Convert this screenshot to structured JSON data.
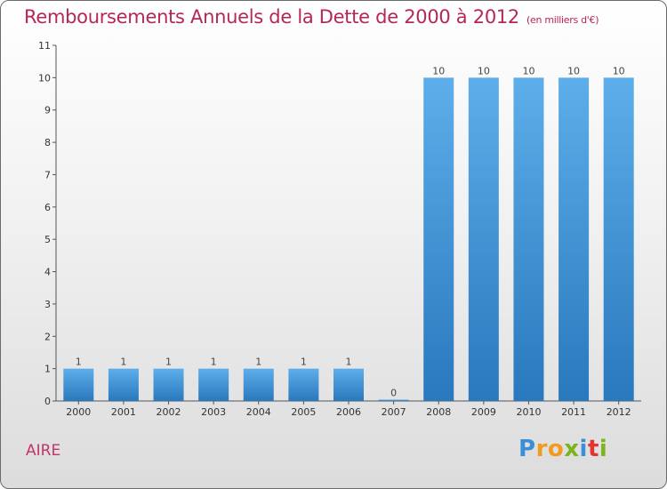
{
  "title": "Remboursements Annuels de la Dette de 2000 à 2012",
  "unit_note": "(en milliers d'€)",
  "city": "AIRE",
  "logo": {
    "letters": [
      "P",
      "r",
      "o",
      "x",
      "i",
      "t",
      "i"
    ],
    "colors": [
      "#3b8fd6",
      "#f29a1e",
      "#f29a1e",
      "#7ab51d",
      "#3b8fd6",
      "#e3342f",
      "#7ab51d"
    ]
  },
  "colors": {
    "bar_top": "#5daeea",
    "bar_bottom": "#2a78bd",
    "title": "#b5265a"
  },
  "chart_data": {
    "type": "bar",
    "categories": [
      "2000",
      "2001",
      "2002",
      "2003",
      "2004",
      "2005",
      "2006",
      "2007",
      "2008",
      "2009",
      "2010",
      "2011",
      "2012"
    ],
    "values": [
      1,
      1,
      1,
      1,
      1,
      1,
      1,
      0,
      10,
      10,
      10,
      10,
      10
    ],
    "data_labels": [
      "1",
      "1",
      "1",
      "1",
      "1",
      "1",
      "1",
      "0",
      "10",
      "10",
      "10",
      "10",
      "10"
    ],
    "y_ticks": [
      "0",
      "1",
      "2",
      "3",
      "4",
      "5",
      "6",
      "7",
      "8",
      "9",
      "10",
      "11"
    ],
    "ylim": [
      0,
      11
    ],
    "grid": false,
    "legend": "none"
  }
}
